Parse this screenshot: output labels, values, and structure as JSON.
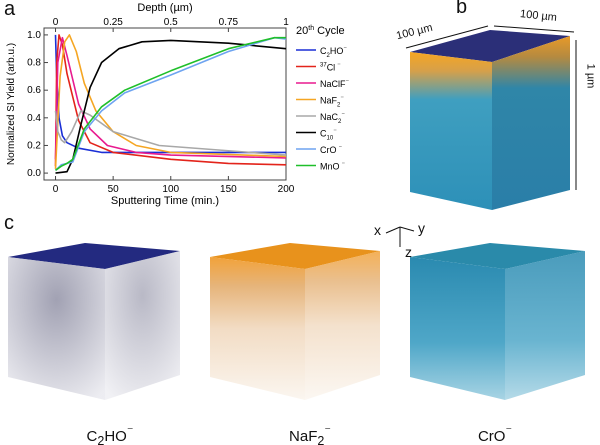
{
  "panels": {
    "a": "a",
    "b": "b",
    "c": "c"
  },
  "chart_data": {
    "type": "line",
    "title": "20th Cycle",
    "xlabel": "Sputtering Time (min.)",
    "x2label": "Depth (µm)",
    "ylabel": "Normalized SI Yield (arb.u.)",
    "xlim": [
      -10,
      200
    ],
    "ylim": [
      -0.05,
      1.05
    ],
    "xticks": [
      "0",
      "50",
      "100",
      "150",
      "200"
    ],
    "x2ticks": [
      "0",
      "0.25",
      "0.5",
      "0.75",
      "1"
    ],
    "yticks": [
      "0.0",
      "0.2",
      "0.4",
      "0.6",
      "0.8",
      "1.0"
    ],
    "legend_position": "right",
    "series": [
      {
        "name": "C2HO⁻",
        "label_main": "C",
        "sub": "2",
        "rest": "HO",
        "sup": "⁻",
        "color": "#1a2fd6",
        "x": [
          0,
          1,
          3,
          6,
          10,
          20,
          40,
          80,
          200
        ],
        "y": [
          1.0,
          0.7,
          0.4,
          0.27,
          0.22,
          0.18,
          0.15,
          0.15,
          0.15
        ]
      },
      {
        "name": "37Cl⁻",
        "pre": "37",
        "label_main": "Cl",
        "sup": " ⁻",
        "color": "#e3241b",
        "x": [
          0,
          1,
          3,
          6,
          10,
          20,
          30,
          50,
          100,
          150,
          200
        ],
        "y": [
          0.05,
          0.8,
          1.0,
          0.93,
          0.72,
          0.38,
          0.22,
          0.15,
          0.1,
          0.07,
          0.06
        ]
      },
      {
        "name": "NaClF⁻",
        "label_main": "NaClF",
        "sup": "⁻",
        "color": "#e81a8f",
        "x": [
          0,
          2,
          6,
          10,
          20,
          30,
          45,
          70,
          100,
          200
        ],
        "y": [
          0.1,
          0.8,
          0.98,
          0.85,
          0.5,
          0.32,
          0.2,
          0.15,
          0.13,
          0.11
        ]
      },
      {
        "name": "NaF2⁻",
        "label_main": "NaF",
        "sub": "2",
        "sup": "⁻",
        "color": "#f5a623",
        "x": [
          0,
          4,
          8,
          12,
          18,
          25,
          35,
          50,
          70,
          100,
          200
        ],
        "y": [
          0.03,
          0.7,
          0.95,
          1.0,
          0.88,
          0.65,
          0.45,
          0.3,
          0.2,
          0.15,
          0.12
        ]
      },
      {
        "name": "NaC2⁻",
        "label_main": "NaC",
        "sub": "2",
        "sup": "⁻",
        "color": "#a8a8a8",
        "x": [
          0,
          2,
          5,
          8,
          14,
          22,
          30,
          50,
          90,
          200
        ],
        "y": [
          0.45,
          0.3,
          0.24,
          0.22,
          0.3,
          0.45,
          0.42,
          0.3,
          0.2,
          0.13
        ]
      },
      {
        "name": "C10⁻",
        "label_main": "C",
        "sub": "10",
        "sup": "⁻",
        "color": "#000000",
        "x": [
          0,
          10,
          15,
          22,
          30,
          40,
          55,
          75,
          100,
          150,
          200
        ],
        "y": [
          0.0,
          0.01,
          0.1,
          0.35,
          0.62,
          0.8,
          0.9,
          0.95,
          0.96,
          0.94,
          0.9
        ]
      },
      {
        "name": "CrO⁻",
        "label_main": "CrO",
        "sup": " ⁻",
        "color": "#6ea4f0",
        "x": [
          0,
          5,
          10,
          15,
          25,
          40,
          60,
          100,
          150,
          190,
          200
        ],
        "y": [
          0.02,
          0.06,
          0.07,
          0.08,
          0.3,
          0.45,
          0.58,
          0.71,
          0.88,
          0.98,
          0.97
        ]
      },
      {
        "name": "MnO⁻",
        "label_main": "MnO",
        "sup": " ⁻",
        "color": "#1fbf2a",
        "x": [
          0,
          5,
          10,
          15,
          25,
          40,
          60,
          100,
          150,
          190,
          200
        ],
        "y": [
          0.02,
          0.05,
          0.07,
          0.1,
          0.32,
          0.48,
          0.6,
          0.74,
          0.9,
          0.98,
          0.98
        ]
      }
    ]
  },
  "cube_b": {
    "dim_x": "100 µm",
    "dim_y": "100 µm",
    "dim_z": "1 µm"
  },
  "axes": {
    "x": "x",
    "y": "y",
    "z": "z"
  },
  "cubes_c": [
    {
      "label": "C",
      "sub": "2",
      "rest": "HO",
      "sup": "⁻"
    },
    {
      "label": "NaF",
      "sub": "2",
      "rest": "",
      "sup": "⁻"
    },
    {
      "label": "CrO",
      "sub": "",
      "rest": "",
      "sup": "⁻"
    }
  ]
}
